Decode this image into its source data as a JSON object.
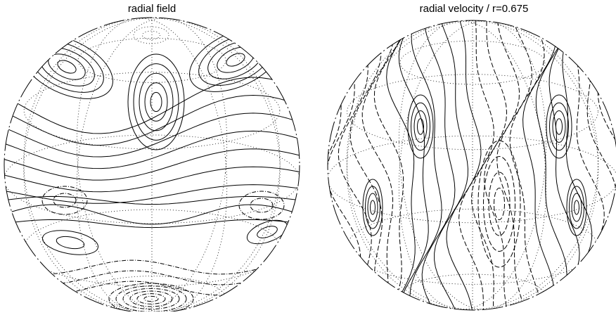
{
  "panels": [
    {
      "title": "radial field"
    },
    {
      "title": "radial velocity / r=0.675"
    }
  ]
}
